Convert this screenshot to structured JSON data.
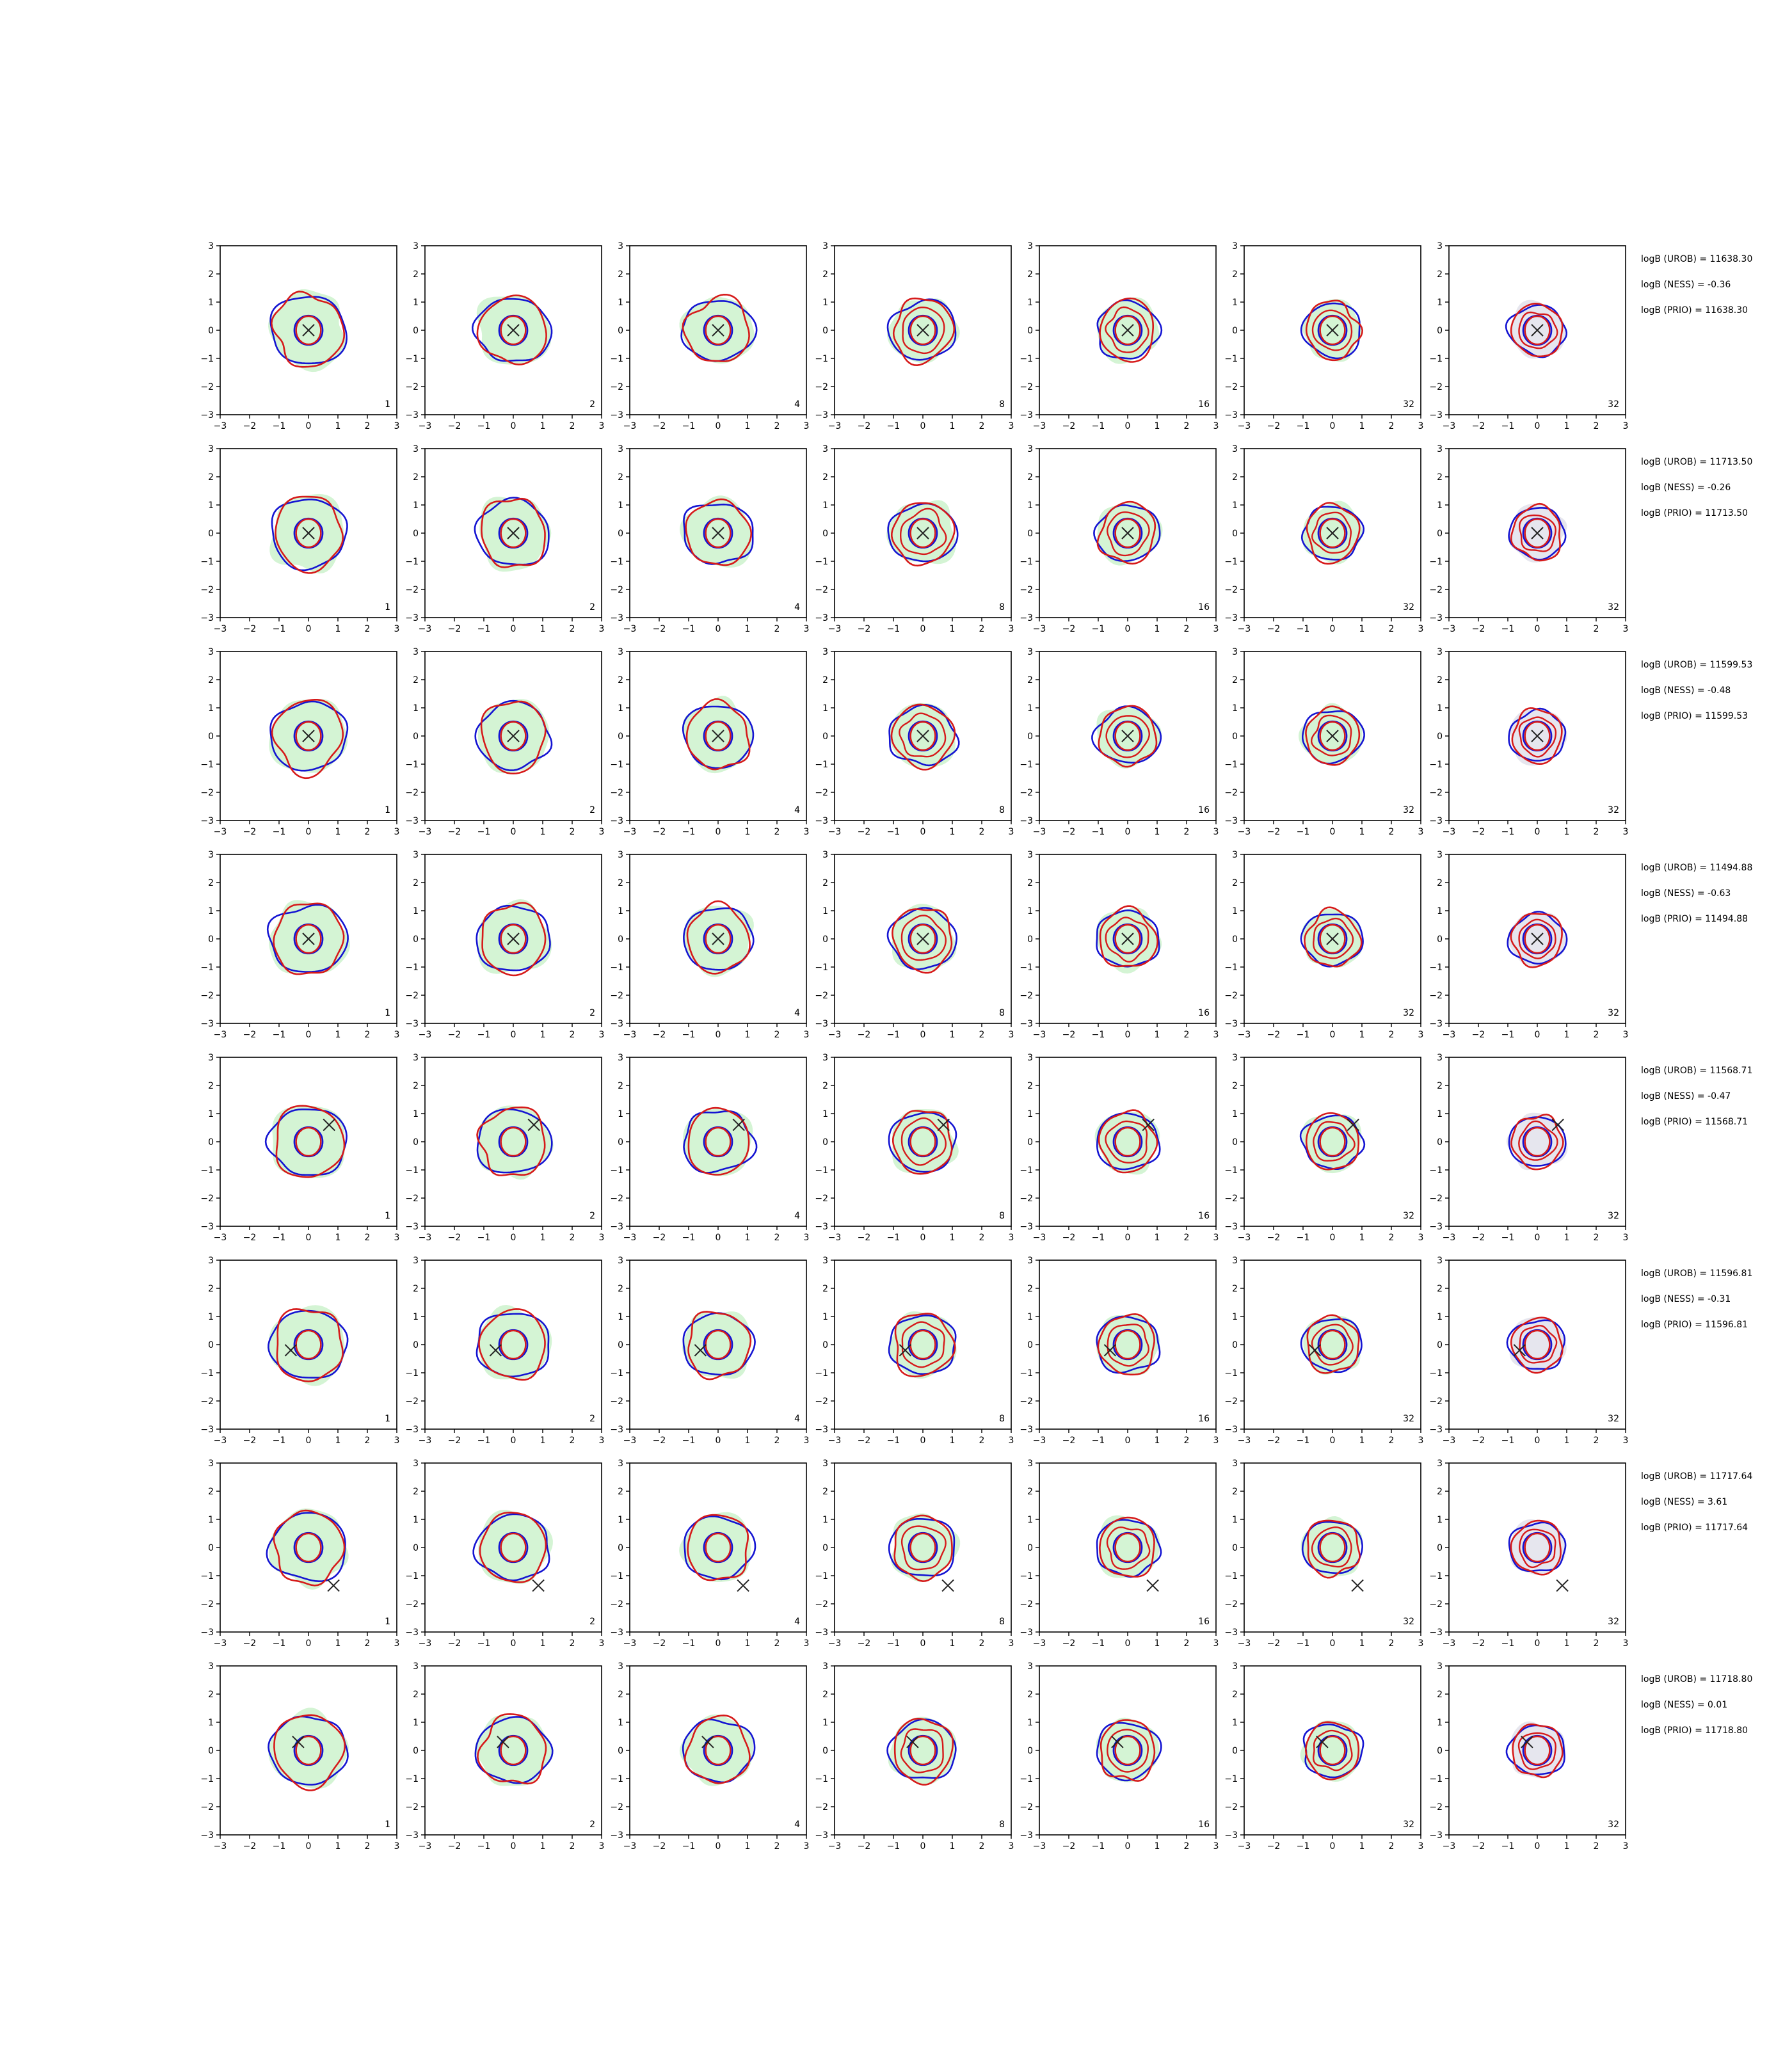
{
  "chart_data": {
    "type": "contour-grid",
    "rows": 8,
    "columns": 7,
    "xlim": [
      -3,
      3
    ],
    "ylim": [
      -3,
      3
    ],
    "tick_labels": [
      "−3",
      "−2",
      "−1",
      "0",
      "1",
      "2",
      "3"
    ],
    "column_labels": [
      "1",
      "2",
      "4",
      "8",
      "16",
      "32",
      "32"
    ],
    "colors": {
      "fill": "#d4f4d4",
      "fill_last_column": "#e6e6ee",
      "contour_a": "#1414d2",
      "contour_b": "#d61a1a",
      "marker": "#222222"
    },
    "rows_data": [
      {
        "marker": [
          0.0,
          0.0
        ],
        "annotations": [
          "logB (UROB) = 11638.30",
          "logB (NESS) = -0.36",
          "logB (PRIO) = 11638.30"
        ]
      },
      {
        "marker": [
          0.0,
          0.0
        ],
        "annotations": [
          "logB (UROB) = 11713.50",
          "logB (NESS) = -0.26",
          "logB (PRIO) = 11713.50"
        ]
      },
      {
        "marker": [
          0.0,
          0.0
        ],
        "annotations": [
          "logB (UROB) = 11599.53",
          "logB (NESS) = -0.48",
          "logB (PRIO) = 11599.53"
        ]
      },
      {
        "marker": [
          0.0,
          0.0
        ],
        "annotations": [
          "logB (UROB) = 11494.88",
          "logB (NESS) = -0.63",
          "logB (PRIO) = 11494.88"
        ]
      },
      {
        "marker": [
          0.7,
          0.6
        ],
        "annotations": [
          "logB (UROB) = 11568.71",
          "logB (NESS) = -0.47",
          "logB (PRIO) = 11568.71"
        ]
      },
      {
        "marker": [
          -0.6,
          -0.2
        ],
        "annotations": [
          "logB (UROB) = 11596.81",
          "logB (NESS) = -0.31",
          "logB (PRIO) = 11596.81"
        ]
      },
      {
        "marker": [
          0.85,
          -1.35
        ],
        "annotations": [
          "logB (UROB) = 11717.64",
          "logB (NESS) = 3.61",
          "logB (PRIO) = 11717.64"
        ]
      },
      {
        "marker": [
          -0.35,
          0.3
        ],
        "annotations": [
          "logB (UROB) = 11718.80",
          "logB (NESS) = 0.01",
          "logB (PRIO) = 11718.80"
        ]
      }
    ]
  }
}
